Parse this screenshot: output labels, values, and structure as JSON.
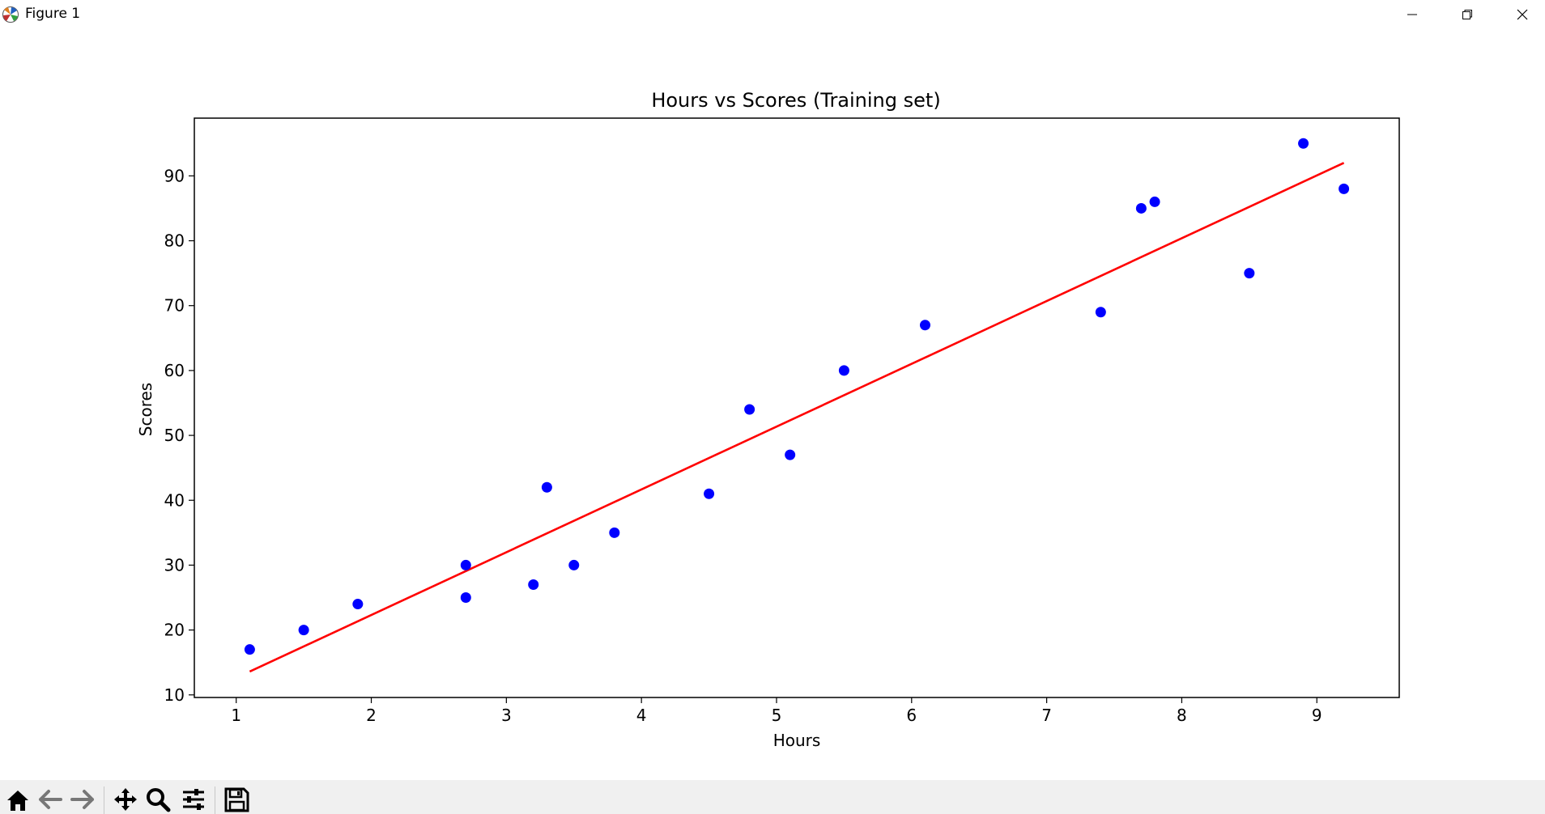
{
  "window": {
    "title": "Figure 1",
    "app_icon": "matplotlib-icon",
    "controls": [
      "minimize-icon",
      "restore-icon",
      "close-icon"
    ]
  },
  "toolbar": {
    "buttons": [
      "home-icon",
      "back-icon",
      "forward-icon",
      "pan-icon",
      "zoom-icon",
      "configure-subplots-icon",
      "save-icon"
    ]
  },
  "colors": {
    "points": "#0000ff",
    "line": "#ff0000"
  },
  "chart_data": {
    "type": "scatter",
    "title": "Hours vs Scores (Training set)",
    "xlabel": "Hours",
    "ylabel": "Scores",
    "xlim": [
      0.69,
      9.61
    ],
    "ylim": [
      9.6,
      98.9
    ],
    "xticks": [
      1,
      2,
      3,
      4,
      5,
      6,
      7,
      8,
      9
    ],
    "yticks": [
      10,
      20,
      30,
      40,
      50,
      60,
      70,
      80,
      90
    ],
    "grid": false,
    "series": [
      {
        "kind": "scatter",
        "color": "#0000ff",
        "points": [
          [
            1.1,
            17
          ],
          [
            1.5,
            20
          ],
          [
            1.9,
            24
          ],
          [
            2.7,
            30
          ],
          [
            2.7,
            25
          ],
          [
            3.2,
            27
          ],
          [
            3.3,
            42
          ],
          [
            3.5,
            30
          ],
          [
            3.8,
            35
          ],
          [
            4.5,
            41
          ],
          [
            4.8,
            54
          ],
          [
            5.1,
            47
          ],
          [
            5.5,
            60
          ],
          [
            6.1,
            67
          ],
          [
            7.4,
            69
          ],
          [
            7.7,
            85
          ],
          [
            7.8,
            86
          ],
          [
            8.5,
            75
          ],
          [
            8.9,
            95
          ],
          [
            9.2,
            88
          ]
        ]
      },
      {
        "kind": "line",
        "color": "#ff0000",
        "points": [
          [
            1.1,
            13.6
          ],
          [
            9.2,
            92.0
          ]
        ]
      }
    ]
  }
}
